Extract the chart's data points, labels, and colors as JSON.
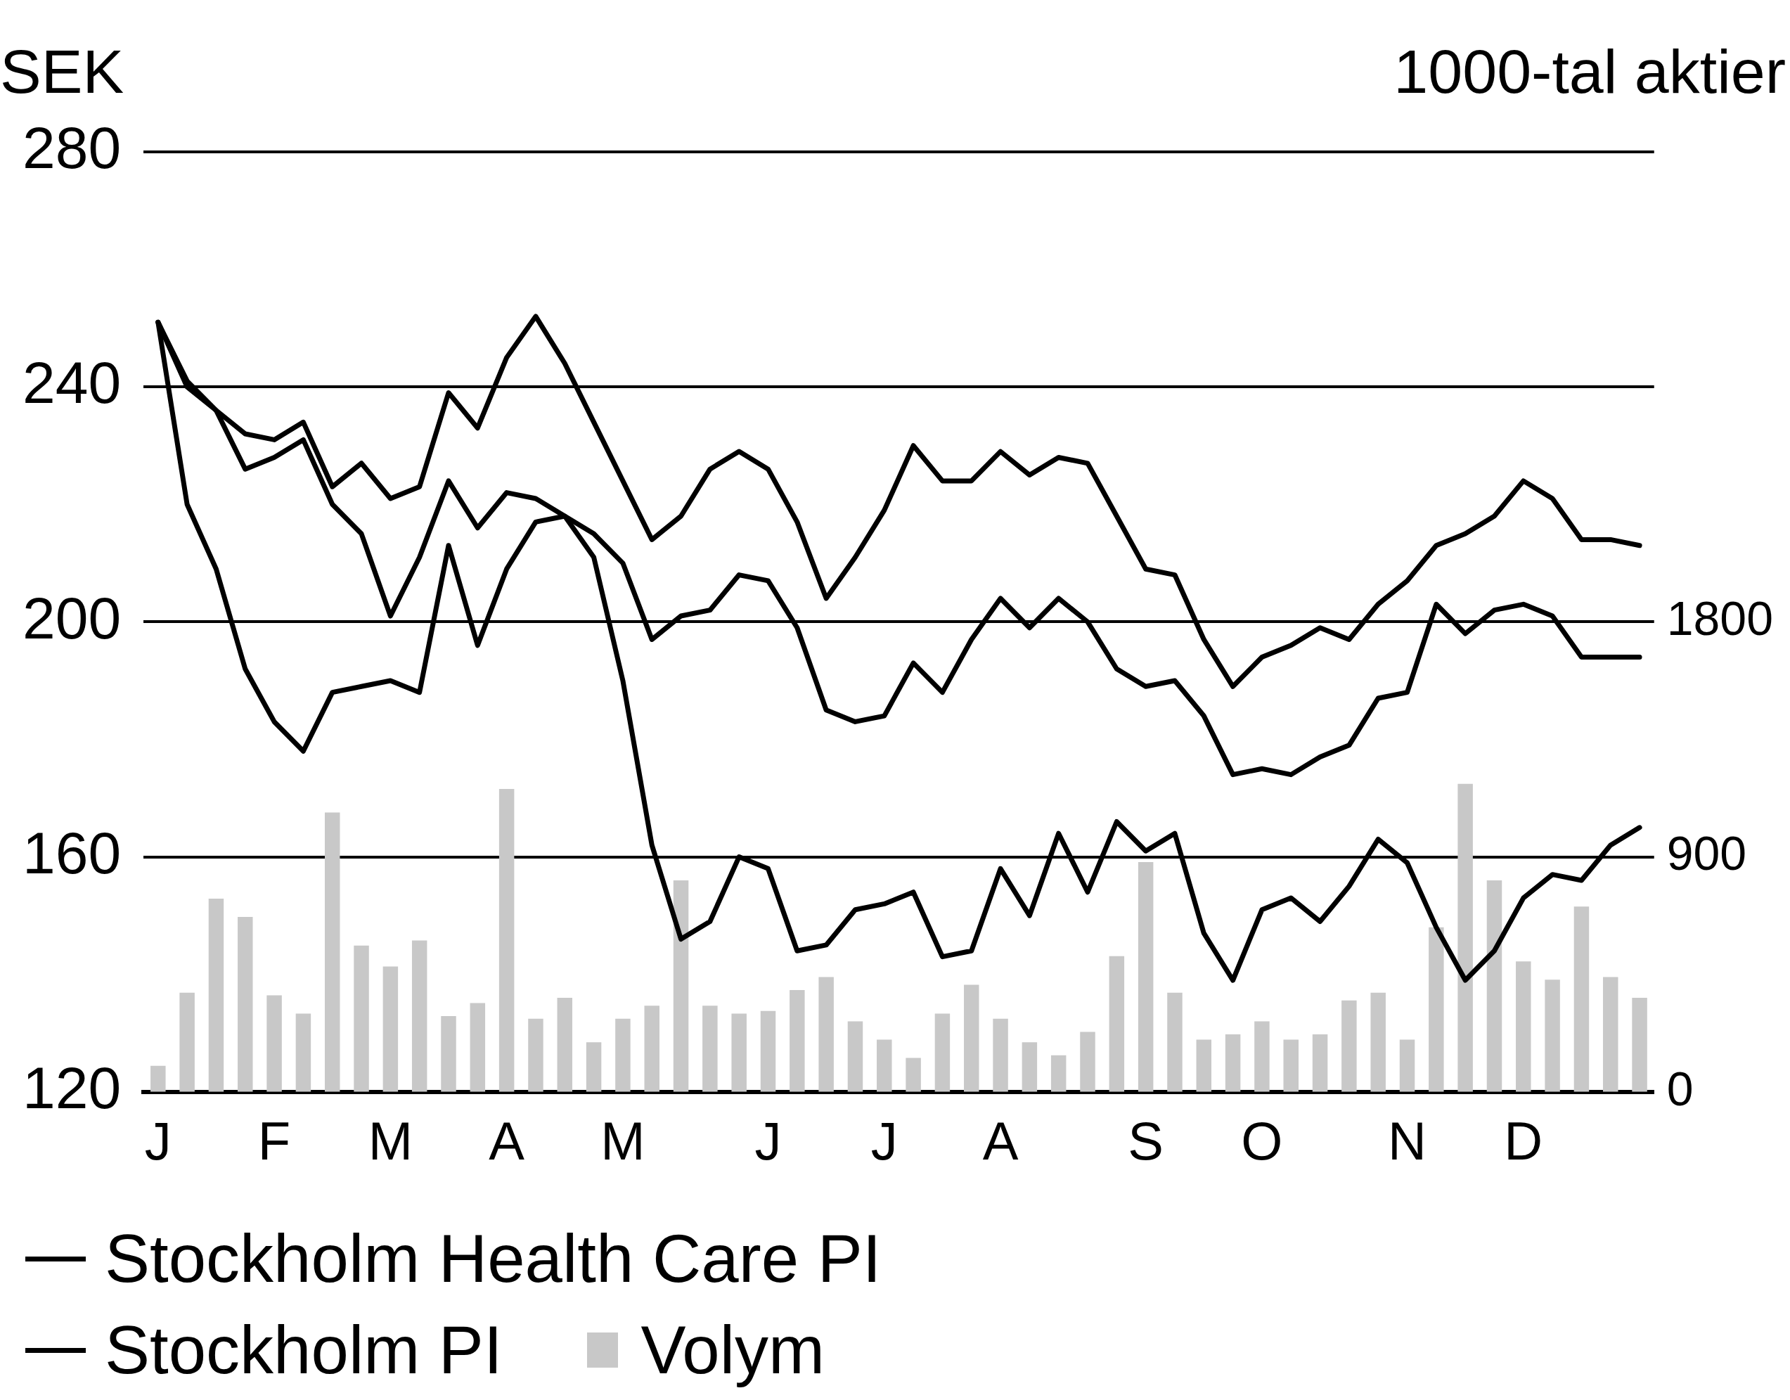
{
  "chart_data": {
    "type": "line",
    "ylabel": "SEK",
    "y2label": "1000-tal aktier",
    "categories": [
      "J",
      null,
      null,
      null,
      "F",
      null,
      null,
      null,
      "M",
      null,
      null,
      null,
      "A",
      null,
      null,
      null,
      "M",
      null,
      null,
      null,
      null,
      "J",
      null,
      null,
      null,
      "J",
      null,
      null,
      null,
      "A",
      null,
      null,
      null,
      null,
      "S",
      null,
      null,
      null,
      "O",
      null,
      null,
      null,
      null,
      "N",
      null,
      null,
      null,
      "D",
      null,
      null,
      null,
      null
    ],
    "series": [
      {
        "color": "#000000",
        "values": [
          251,
          220,
          209,
          192,
          183,
          178,
          188,
          189,
          190,
          188,
          213,
          196,
          209,
          217,
          218,
          211,
          190,
          162,
          146,
          149,
          160,
          158,
          144,
          145,
          151,
          152,
          154,
          143,
          144,
          158,
          150,
          164,
          154,
          166,
          161,
          164,
          147,
          139,
          151,
          153,
          149,
          155,
          163,
          159,
          148,
          139,
          144,
          153,
          157,
          156,
          162,
          165
        ]
      },
      {
        "name": "Stockholm Health Care PI",
        "color": "#000000",
        "values": [
          251,
          240,
          236,
          232,
          231,
          234,
          223,
          227,
          221,
          223,
          239,
          233,
          245,
          252,
          244,
          234,
          224,
          214,
          218,
          226,
          229,
          226,
          217,
          204,
          211,
          219,
          230,
          224,
          224,
          229,
          225,
          228,
          227,
          218,
          209,
          208,
          197,
          189,
          194,
          196,
          199,
          197,
          203,
          207,
          213,
          215,
          218,
          224,
          221,
          214,
          214,
          213
        ]
      },
      {
        "name": "Stockholm PI",
        "color": "#000000",
        "values": [
          251,
          241,
          236,
          226,
          228,
          231,
          220,
          215,
          201,
          211,
          224,
          216,
          222,
          221,
          218,
          215,
          210,
          197,
          201,
          202,
          208,
          207,
          199,
          185,
          183,
          184,
          193,
          188,
          197,
          204,
          199,
          204,
          200,
          192,
          189,
          190,
          184,
          174,
          175,
          174,
          177,
          179,
          187,
          188,
          203,
          198,
          202,
          203,
          201,
          194,
          194,
          194
        ]
      },
      {
        "type": "bar",
        "name": "Volym",
        "color": "#c8c8c8",
        "axis": "y2",
        "values": [
          100,
          380,
          740,
          670,
          370,
          300,
          1070,
          560,
          480,
          580,
          290,
          340,
          1160,
          280,
          360,
          190,
          280,
          330,
          810,
          330,
          300,
          310,
          390,
          440,
          270,
          200,
          130,
          300,
          410,
          280,
          190,
          140,
          230,
          520,
          880,
          380,
          200,
          220,
          270,
          200,
          220,
          350,
          380,
          200,
          630,
          1180,
          810,
          500,
          430,
          710,
          440,
          360
        ]
      }
    ],
    "ylim": [
      120,
      280
    ],
    "yticks": [
      120,
      160,
      200,
      240,
      280
    ],
    "y2lim": [
      0,
      3600
    ],
    "y2ticks": [
      0,
      900,
      1800
    ],
    "grid": "y",
    "legend": "bottom left",
    "line_style": "solid"
  }
}
